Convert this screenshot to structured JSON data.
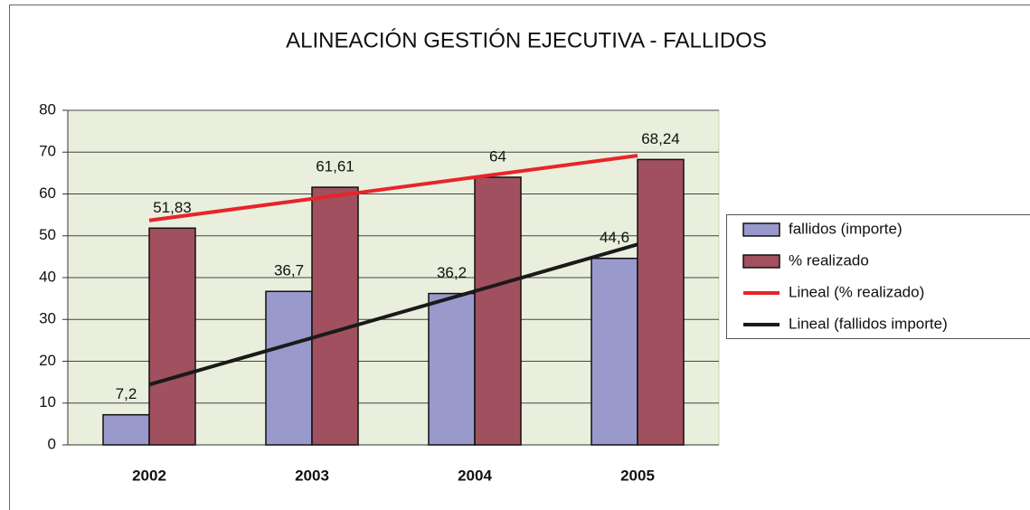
{
  "chart_data": {
    "type": "bar",
    "title": "ALINEACIÓN GESTIÓN EJECUTIVA - FALLIDOS",
    "categories": [
      "2002",
      "2003",
      "2004",
      "2005"
    ],
    "series": [
      {
        "name": "fallidos (importe)",
        "color": "#9999cc",
        "values": [
          7.2,
          36.7,
          36.2,
          44.6
        ],
        "value_labels": [
          "7,2",
          "36,7",
          "36,2",
          "44,6"
        ]
      },
      {
        "name": "% realizado",
        "color": "#a0505e",
        "values": [
          51.83,
          61.61,
          64,
          68.24
        ],
        "value_labels": [
          "51,83",
          "61,61",
          "64",
          "68,24"
        ]
      },
      {
        "name": "Lineal (% realizado)",
        "type": "line",
        "color": "#e8242a",
        "values": [
          53.68,
          58.84,
          64.0,
          69.17
        ]
      },
      {
        "name": "Lineal (fallidos importe)",
        "type": "line",
        "color": "#1a1a1a",
        "values": [
          14.42,
          25.59,
          36.76,
          47.93
        ]
      }
    ],
    "ylim": [
      0,
      80
    ],
    "yticks": [
      0,
      10,
      20,
      30,
      40,
      50,
      60,
      70,
      80
    ],
    "grid": true,
    "legend": "right"
  }
}
